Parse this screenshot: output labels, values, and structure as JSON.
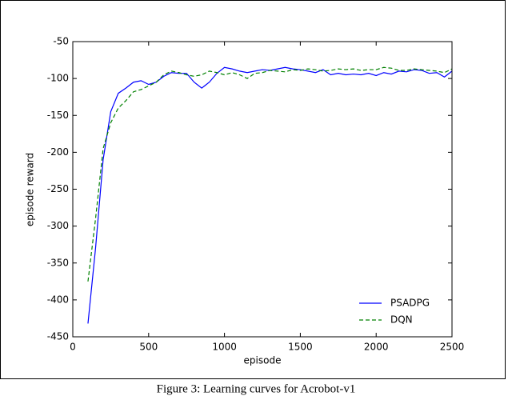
{
  "chart_data": {
    "type": "line",
    "caption": "Figure 3: Learning curves for Acrobot-v1",
    "x_label": "episode",
    "y_label": "episode reward",
    "x": [
      100,
      150,
      200,
      250,
      300,
      350,
      400,
      450,
      500,
      550,
      600,
      650,
      700,
      750,
      800,
      850,
      900,
      950,
      1000,
      1050,
      1100,
      1150,
      1200,
      1250,
      1300,
      1350,
      1400,
      1450,
      1500,
      1550,
      1600,
      1650,
      1700,
      1750,
      1800,
      1850,
      1900,
      1950,
      2000,
      2050,
      2100,
      2150,
      2200,
      2250,
      2300,
      2350,
      2400,
      2450,
      2500
    ],
    "series": [
      {
        "name": "PSADPG",
        "color": "#0000ff",
        "dash": "solid",
        "values": [
          -432,
          -330,
          -210,
          -145,
          -120,
          -113,
          -105,
          -103,
          -108,
          -105,
          -97,
          -92,
          -93,
          -93,
          -105,
          -113,
          -105,
          -93,
          -85,
          -87,
          -90,
          -92,
          -90,
          -88,
          -89,
          -87,
          -85,
          -87,
          -88,
          -90,
          -92,
          -88,
          -95,
          -93,
          -95,
          -94,
          -95,
          -93,
          -96,
          -92,
          -94,
          -90,
          -91,
          -88,
          -89,
          -93,
          -92,
          -98,
          -90
        ]
      },
      {
        "name": "DQN",
        "color": "#008000",
        "dash": "dashed",
        "values": [
          -375,
          -290,
          -195,
          -160,
          -140,
          -130,
          -118,
          -115,
          -110,
          -105,
          -95,
          -90,
          -92,
          -95,
          -97,
          -95,
          -90,
          -92,
          -95,
          -92,
          -95,
          -100,
          -93,
          -92,
          -89,
          -90,
          -91,
          -88,
          -89,
          -87,
          -88,
          -90,
          -89,
          -87,
          -88,
          -87,
          -89,
          -88,
          -88,
          -85,
          -86,
          -89,
          -89,
          -87,
          -88,
          -89,
          -90,
          -92,
          -87
        ]
      }
    ],
    "xlim": [
      0,
      2500
    ],
    "xticks": [
      0,
      500,
      1000,
      1500,
      2000,
      2500
    ],
    "ylim": [
      -450,
      -50
    ],
    "yticks": [
      -450,
      -400,
      -350,
      -300,
      -250,
      -200,
      -150,
      -100,
      -50
    ],
    "legend": "lower right"
  }
}
